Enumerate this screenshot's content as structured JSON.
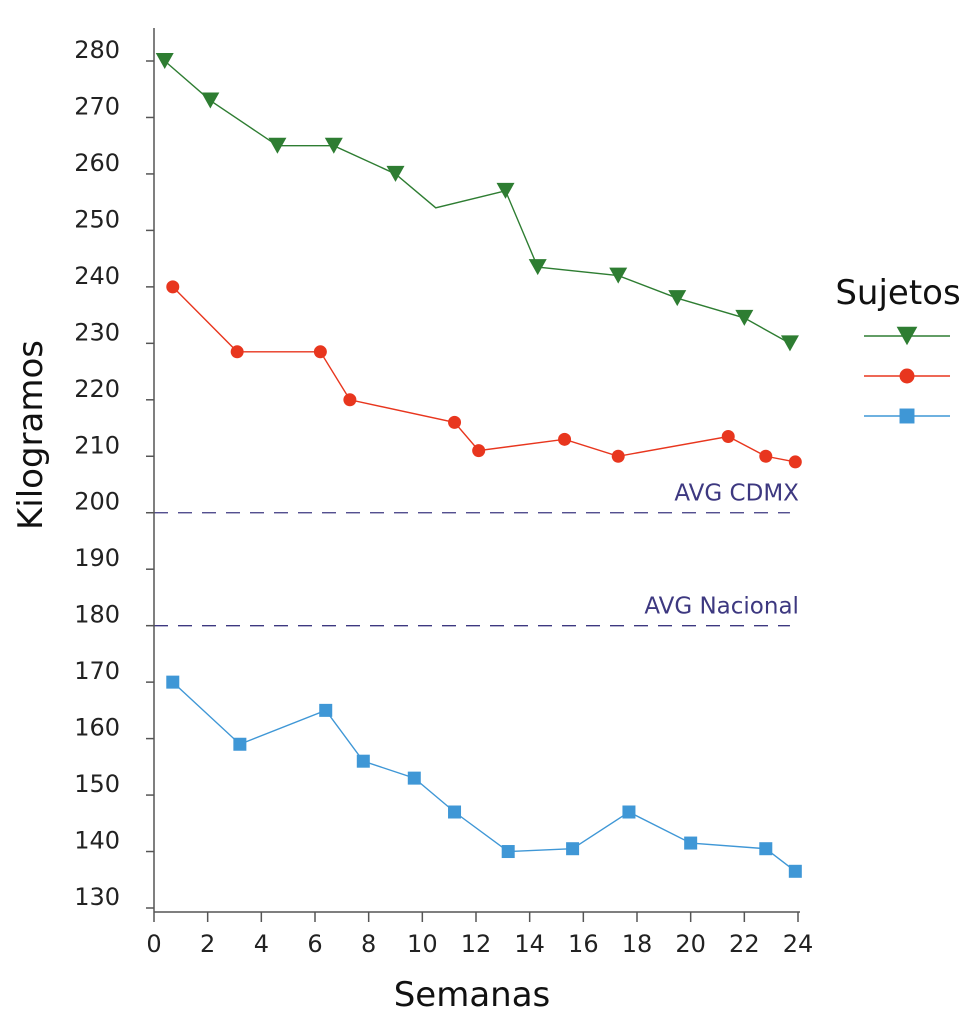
{
  "chart_data": {
    "type": "line",
    "title": "",
    "xlabel": "Semanas",
    "ylabel": "Kilogramos",
    "xlim": [
      0,
      24
    ],
    "ylim": [
      130,
      280
    ],
    "xticks": [
      "0",
      "2",
      "4",
      "6",
      "8",
      "10",
      "12",
      "14",
      "16",
      "18",
      "20",
      "22",
      "24"
    ],
    "yticks": [
      "130",
      "140",
      "150",
      "160",
      "170",
      "180",
      "190",
      "200",
      "210",
      "220",
      "230",
      "240",
      "250",
      "260",
      "270",
      "280"
    ],
    "grid": false,
    "legend": {
      "title": "Sujetos",
      "position": "right"
    },
    "series": [
      {
        "color": "#2e7d32",
        "marker": "triangle-down",
        "points": [
          [
            0.4,
            280
          ],
          [
            2.1,
            273
          ],
          [
            4.6,
            265
          ],
          [
            6.7,
            265
          ],
          [
            9.0,
            260
          ],
          [
            10.5,
            254
          ],
          [
            13.1,
            257
          ],
          [
            14.3,
            243.5
          ],
          [
            17.3,
            242
          ],
          [
            19.5,
            238
          ],
          [
            22.0,
            234.5
          ],
          [
            23.7,
            230
          ]
        ],
        "marker_mask": [
          true,
          true,
          true,
          true,
          true,
          false,
          true,
          true,
          true,
          true,
          true,
          true
        ]
      },
      {
        "color": "#e8361e",
        "marker": "circle",
        "points": [
          [
            0.7,
            240
          ],
          [
            3.1,
            228.5
          ],
          [
            6.2,
            228.5
          ],
          [
            7.3,
            220
          ],
          [
            11.2,
            216
          ],
          [
            12.1,
            211
          ],
          [
            15.3,
            213
          ],
          [
            17.3,
            210
          ],
          [
            21.4,
            213.5
          ],
          [
            22.8,
            210
          ],
          [
            23.9,
            209
          ]
        ]
      },
      {
        "color": "#3f97d6",
        "marker": "square",
        "points": [
          [
            0.7,
            170
          ],
          [
            3.2,
            159
          ],
          [
            6.4,
            165
          ],
          [
            7.8,
            156
          ],
          [
            9.7,
            153
          ],
          [
            11.2,
            147
          ],
          [
            13.2,
            140
          ],
          [
            15.6,
            140.5
          ],
          [
            17.7,
            147
          ],
          [
            20.0,
            141.5
          ],
          [
            22.8,
            140.5
          ],
          [
            23.9,
            136.5
          ]
        ]
      }
    ],
    "reference_lines": [
      {
        "label": "AVG CDMX",
        "y": 200,
        "color": "#3d3880",
        "style": "dashed",
        "x_range": [
          0,
          23.7
        ]
      },
      {
        "label": "AVG Nacional",
        "y": 180,
        "color": "#3d3880",
        "style": "dashed",
        "x_range": [
          0,
          23.7
        ]
      }
    ]
  }
}
